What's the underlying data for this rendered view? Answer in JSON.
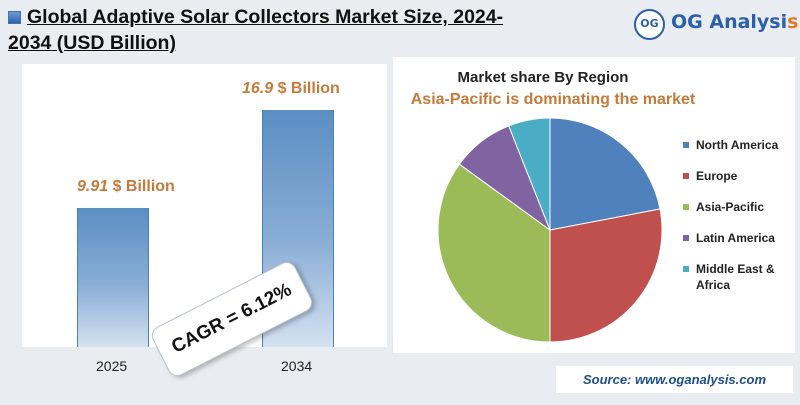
{
  "header": {
    "title_line1": "Global Adaptive Solar Collectors Market Size, 2024-",
    "title_line2": "2034 (USD Billion)"
  },
  "logo": {
    "badge": "OG",
    "name_main": "OG Analysi",
    "name_accent": "s"
  },
  "colors": {
    "bar": "#5b8ec3",
    "value_label": "#c57a3a",
    "north_america": "#4f81bd",
    "europe": "#c0504d",
    "asia_pacific": "#9bbb59",
    "latin_america": "#8064a2",
    "middle_east_africa": "#4bacc6"
  },
  "chart_data": [
    {
      "type": "bar",
      "categories": [
        "2025",
        "2034"
      ],
      "values": [
        9.91,
        16.9
      ],
      "value_labels": [
        {
          "number": "9.91",
          "unit": " $ Billion"
        },
        {
          "number": "16.9",
          "unit": " $ Billion"
        }
      ],
      "annotation": "CAGR = 6.12%",
      "title": "",
      "xlabel": "",
      "ylabel": "",
      "ylim": [
        0,
        20
      ],
      "grid": false
    },
    {
      "type": "pie",
      "title": "Market share By Region",
      "subtitle": "Asia-Pacific is dominating the market",
      "legend_position": "right",
      "slices": [
        {
          "label": "North America",
          "value": 22,
          "color": "#4f81bd"
        },
        {
          "label": "Europe",
          "value": 28,
          "color": "#c0504d"
        },
        {
          "label": "Asia-Pacific",
          "value": 35,
          "color": "#9bbb59"
        },
        {
          "label": "Latin America",
          "value": 9,
          "color": "#8064a2"
        },
        {
          "label": "Middle East & Africa",
          "value": 6,
          "color": "#4bacc6"
        }
      ]
    }
  ],
  "legend_text": {
    "north_america": "North America",
    "europe": "Europe",
    "asia_pacific": "Asia-Pacific",
    "latin_america": "Latin America",
    "middle_east_africa": "Middle East & Africa"
  },
  "footer": {
    "source": "Source: www.oganalysis.com"
  }
}
